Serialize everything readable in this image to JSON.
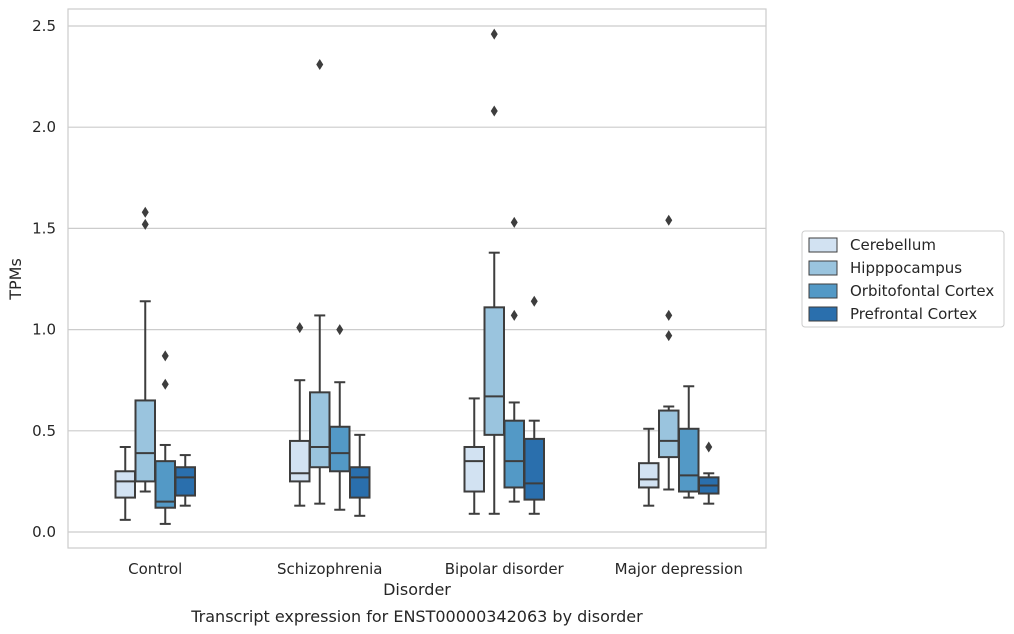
{
  "chart_data": {
    "type": "box",
    "title": "",
    "caption": "Transcript expression for ENST00000342063 by disorder",
    "xlabel": "Disorder",
    "ylabel": "TPMs",
    "categories": [
      "Control",
      "Schizophrenia",
      "Bipolar disorder",
      "Major depression"
    ],
    "ylim": [
      -0.07,
      2.58
    ],
    "yticks": [
      0.0,
      0.5,
      1.0,
      1.5,
      2.0,
      2.5
    ],
    "ytick_labels": [
      "0.0",
      "0.5",
      "1.0",
      "1.5",
      "2.0",
      "2.5"
    ],
    "grid": "horizontal",
    "legend_position": "right",
    "series": [
      {
        "name": "Cerebellum",
        "color": "#d2e2f2",
        "boxes": [
          {
            "whisker_low": 0.06,
            "q1": 0.17,
            "median": 0.25,
            "q3": 0.3,
            "whisker_high": 0.42,
            "outliers": []
          },
          {
            "whisker_low": 0.13,
            "q1": 0.25,
            "median": 0.29,
            "q3": 0.45,
            "whisker_high": 0.75,
            "outliers": [
              1.01
            ]
          },
          {
            "whisker_low": 0.09,
            "q1": 0.2,
            "median": 0.35,
            "q3": 0.42,
            "whisker_high": 0.66,
            "outliers": []
          },
          {
            "whisker_low": 0.13,
            "q1": 0.22,
            "median": 0.26,
            "q3": 0.34,
            "whisker_high": 0.51,
            "outliers": []
          }
        ]
      },
      {
        "name": "Hipppocampus",
        "color": "#9ac4de",
        "boxes": [
          {
            "whisker_low": 0.2,
            "q1": 0.25,
            "median": 0.39,
            "q3": 0.65,
            "whisker_high": 1.14,
            "outliers": [
              1.52,
              1.58
            ]
          },
          {
            "whisker_low": 0.14,
            "q1": 0.32,
            "median": 0.42,
            "q3": 0.69,
            "whisker_high": 1.07,
            "outliers": [
              2.31
            ]
          },
          {
            "whisker_low": 0.09,
            "q1": 0.48,
            "median": 0.67,
            "q3": 1.11,
            "whisker_high": 1.38,
            "outliers": [
              2.08,
              2.46
            ]
          },
          {
            "whisker_low": 0.21,
            "q1": 0.37,
            "median": 0.45,
            "q3": 0.6,
            "whisker_high": 0.62,
            "outliers": [
              0.97,
              1.07,
              1.54
            ]
          }
        ]
      },
      {
        "name": "Orbitofontal Cortex",
        "color": "#5399c6",
        "boxes": [
          {
            "whisker_low": 0.04,
            "q1": 0.12,
            "median": 0.15,
            "q3": 0.35,
            "whisker_high": 0.43,
            "outliers": [
              0.73,
              0.87
            ]
          },
          {
            "whisker_low": 0.11,
            "q1": 0.3,
            "median": 0.39,
            "q3": 0.52,
            "whisker_high": 0.74,
            "outliers": [
              1.0
            ]
          },
          {
            "whisker_low": 0.15,
            "q1": 0.22,
            "median": 0.35,
            "q3": 0.55,
            "whisker_high": 0.64,
            "outliers": [
              1.07,
              1.53
            ]
          },
          {
            "whisker_low": 0.17,
            "q1": 0.2,
            "median": 0.28,
            "q3": 0.51,
            "whisker_high": 0.72,
            "outliers": []
          }
        ]
      },
      {
        "name": "Prefrontal Cortex",
        "color": "#2a6fad",
        "boxes": [
          {
            "whisker_low": 0.13,
            "q1": 0.18,
            "median": 0.27,
            "q3": 0.32,
            "whisker_high": 0.38,
            "outliers": []
          },
          {
            "whisker_low": 0.08,
            "q1": 0.17,
            "median": 0.27,
            "q3": 0.32,
            "whisker_high": 0.48,
            "outliers": []
          },
          {
            "whisker_low": 0.09,
            "q1": 0.16,
            "median": 0.24,
            "q3": 0.46,
            "whisker_high": 0.55,
            "outliers": [
              1.14
            ]
          },
          {
            "whisker_low": 0.14,
            "q1": 0.19,
            "median": 0.23,
            "q3": 0.27,
            "whisker_high": 0.29,
            "outliers": [
              0.42
            ]
          }
        ]
      }
    ]
  }
}
